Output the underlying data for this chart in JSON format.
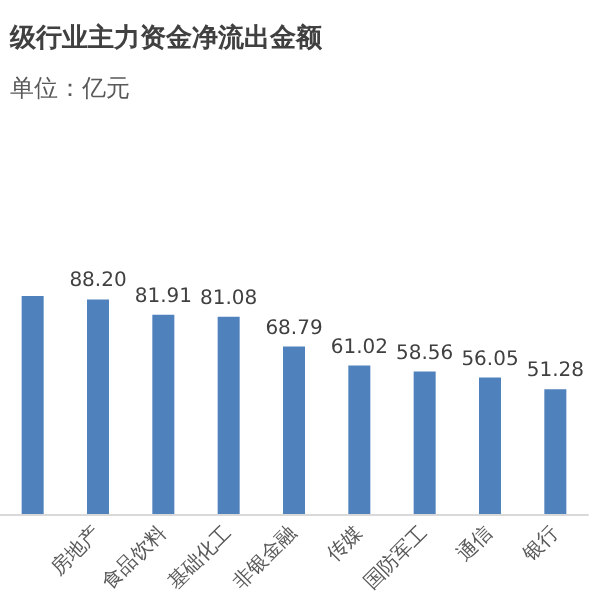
{
  "chart_data": {
    "type": "bar",
    "title": "级行业主力资金净流出金额",
    "subtitle": "单位：亿元",
    "categories": [
      null,
      "房地产",
      "食品饮料",
      "基础化工",
      "非银金融",
      "传媒",
      "国防军工",
      "通信",
      "银行"
    ],
    "values": [
      89.59,
      88.2,
      81.91,
      81.08,
      68.79,
      61.02,
      58.56,
      56.05,
      51.28
    ],
    "value_labels": [
      null,
      "88.20",
      "81.91",
      "81.08",
      "68.79",
      "61.02",
      "58.56",
      "56.05",
      "51.28"
    ],
    "color": "#4f81bd"
  }
}
